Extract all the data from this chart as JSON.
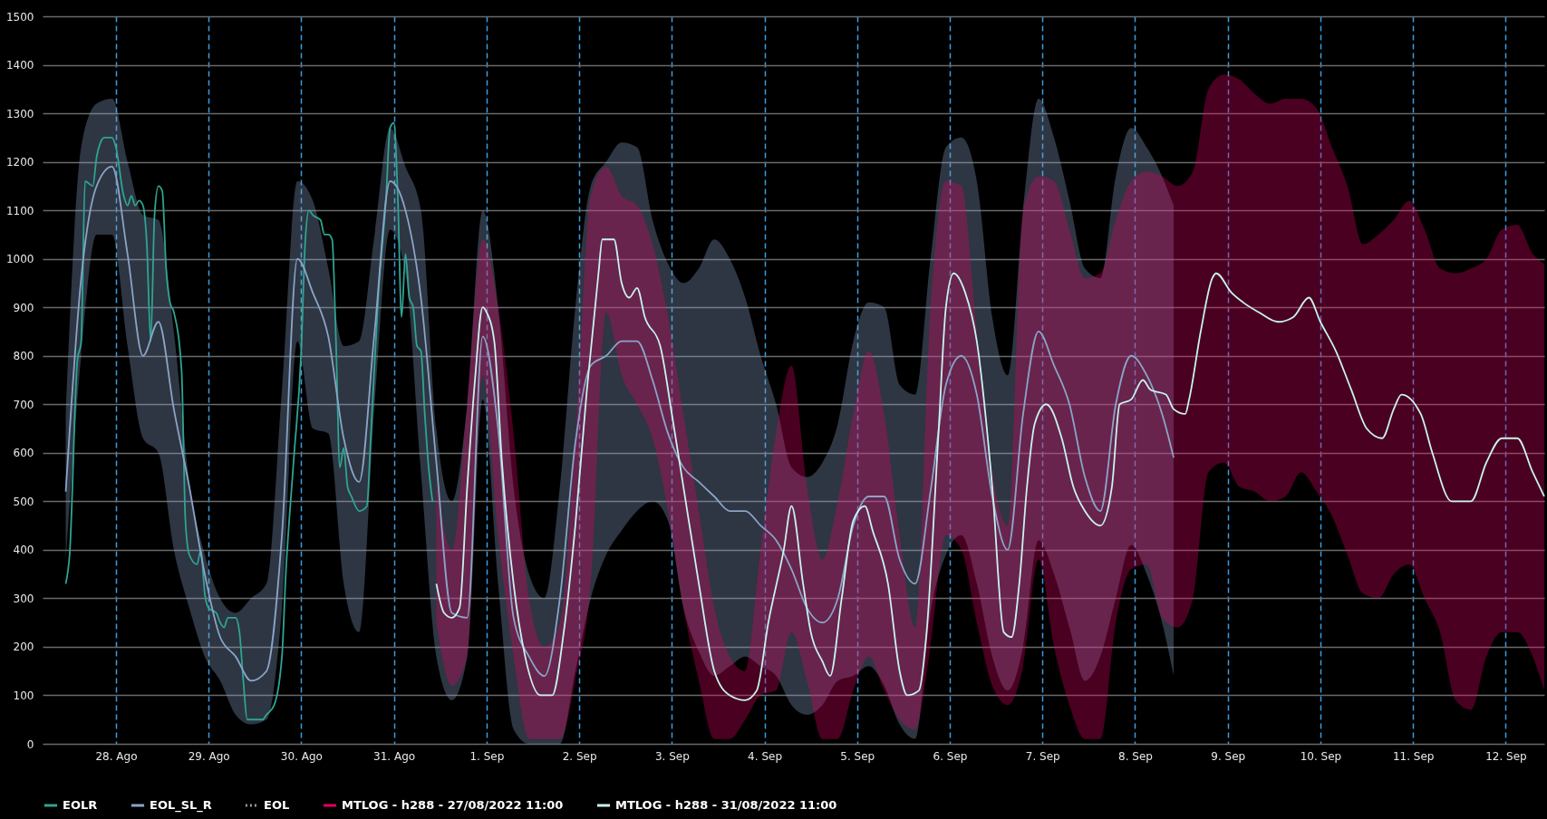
{
  "chart_data": {
    "type": "line",
    "legend": "bottom",
    "grid": true,
    "xlim": [
      "2022-08-27T05:00",
      "2022-09-12T10:00"
    ],
    "xticks": [
      {
        "value": "2022-08-28",
        "label": "28. Ago"
      },
      {
        "value": "2022-08-29",
        "label": "29. Ago"
      },
      {
        "value": "2022-08-30",
        "label": "30. Ago"
      },
      {
        "value": "2022-08-31",
        "label": "31. Ago"
      },
      {
        "value": "2022-09-01",
        "label": "1. Sep"
      },
      {
        "value": "2022-09-02",
        "label": "2. Sep"
      },
      {
        "value": "2022-09-03",
        "label": "3. Sep"
      },
      {
        "value": "2022-09-04",
        "label": "4. Sep"
      },
      {
        "value": "2022-09-05",
        "label": "5. Sep"
      },
      {
        "value": "2022-09-06",
        "label": "6. Sep"
      },
      {
        "value": "2022-09-07",
        "label": "7. Sep"
      },
      {
        "value": "2022-09-08",
        "label": "8. Sep"
      },
      {
        "value": "2022-09-09",
        "label": "9. Sep"
      },
      {
        "value": "2022-09-10",
        "label": "10. Sep"
      },
      {
        "value": "2022-09-11",
        "label": "11. Sep"
      },
      {
        "value": "2022-09-12",
        "label": "12. Sep"
      }
    ],
    "ylim": [
      0,
      1500
    ],
    "yticks": [
      0,
      100,
      200,
      300,
      400,
      500,
      600,
      700,
      800,
      900,
      1000,
      1100,
      1200,
      1300,
      1400,
      1500
    ],
    "series": [
      {
        "name": "EOLR",
        "color": "#2fa493",
        "x": [
          "2022-08-27T11:00",
          "2022-08-27T12:00",
          "2022-08-27T14:00",
          "2022-08-27T15:00",
          "2022-08-27T16:00",
          "2022-08-27T18:00",
          "2022-08-27T19:00",
          "2022-08-27T20:00",
          "2022-08-27T21:00",
          "2022-08-27T23:00",
          "2022-08-28T00:00",
          "2022-08-28T02:00",
          "2022-08-28T03:00",
          "2022-08-28T04:00",
          "2022-08-28T05:00",
          "2022-08-28T06:00",
          "2022-08-28T07:00",
          "2022-08-28T08:00",
          "2022-08-28T09:00",
          "2022-08-28T10:00",
          "2022-08-28T11:00",
          "2022-08-28T12:00",
          "2022-08-28T13:00",
          "2022-08-28T14:00",
          "2022-08-28T15:00",
          "2022-08-28T17:00",
          "2022-08-28T18:00",
          "2022-08-28T19:00",
          "2022-08-28T21:00",
          "2022-08-28T22:00",
          "2022-08-28T23:00",
          "2022-08-29T00:00",
          "2022-08-29T02:00",
          "2022-08-29T03:00",
          "2022-08-29T04:00",
          "2022-08-29T05:00",
          "2022-08-29T07:00",
          "2022-08-29T08:00",
          "2022-08-29T09:00",
          "2022-08-29T10:00",
          "2022-08-29T12:00",
          "2022-08-29T13:00",
          "2022-08-29T14:00",
          "2022-08-29T15:00",
          "2022-08-29T17:00",
          "2022-08-29T19:00",
          "2022-08-29T20:00",
          "2022-08-29T22:00",
          "2022-08-30T00:00",
          "2022-08-30T01:00",
          "2022-08-30T02:00",
          "2022-08-30T03:00",
          "2022-08-30T05:00",
          "2022-08-30T06:00",
          "2022-08-30T07:00",
          "2022-08-30T08:00",
          "2022-08-30T09:00",
          "2022-08-30T10:00",
          "2022-08-30T11:00",
          "2022-08-30T12:00",
          "2022-08-30T13:00",
          "2022-08-30T15:00",
          "2022-08-30T17:00",
          "2022-08-30T18:00",
          "2022-08-30T20:00",
          "2022-08-30T22:00",
          "2022-08-30T23:00",
          "2022-08-31T00:00",
          "2022-08-31T01:00",
          "2022-08-31T02:00",
          "2022-08-31T03:00",
          "2022-08-31T04:00",
          "2022-08-31T05:00",
          "2022-08-31T06:00",
          "2022-08-31T07:00",
          "2022-08-31T08:00",
          "2022-08-31T09:00",
          "2022-08-31T10:00"
        ],
        "values": [
          330,
          390,
          790,
          830,
          1160,
          1150,
          1210,
          1240,
          1250,
          1250,
          1230,
          1130,
          1110,
          1130,
          1110,
          1120,
          1110,
          1030,
          830,
          1090,
          1150,
          1140,
          980,
          910,
          890,
          770,
          460,
          390,
          370,
          400,
          310,
          280,
          270,
          250,
          240,
          260,
          260,
          230,
          130,
          50,
          50,
          50,
          50,
          60,
          80,
          180,
          350,
          580,
          810,
          1030,
          1100,
          1090,
          1080,
          1050,
          1050,
          1040,
          830,
          570,
          610,
          530,
          510,
          480,
          490,
          630,
          930,
          1130,
          1270,
          1280,
          1130,
          880,
          1010,
          920,
          900,
          820,
          810,
          680,
          570,
          500
        ]
      },
      {
        "name": "EOL_SL_R",
        "color": "#8aa4c8",
        "x": [
          "2022-08-27T11:00",
          "2022-08-27T15:00",
          "2022-08-27T19:00",
          "2022-08-27T23:00",
          "2022-08-28T03:00",
          "2022-08-28T07:00",
          "2022-08-28T11:00",
          "2022-08-28T15:00",
          "2022-08-28T19:00",
          "2022-08-28T23:00",
          "2022-08-29T03:00",
          "2022-08-29T07:00",
          "2022-08-29T11:00",
          "2022-08-29T15:00",
          "2022-08-29T19:00",
          "2022-08-29T23:00",
          "2022-08-30T03:00",
          "2022-08-30T07:00",
          "2022-08-30T11:00",
          "2022-08-30T15:00",
          "2022-08-30T19:00",
          "2022-08-30T23:00",
          "2022-08-31T03:00",
          "2022-08-31T07:00",
          "2022-08-31T11:00",
          "2022-08-31T15:00",
          "2022-08-31T19:00",
          "2022-08-31T23:00",
          "2022-09-01T03:00",
          "2022-09-01T07:00",
          "2022-09-01T11:00",
          "2022-09-01T15:00",
          "2022-09-01T19:00",
          "2022-09-01T23:00",
          "2022-09-02T03:00",
          "2022-09-02T07:00",
          "2022-09-02T11:00",
          "2022-09-02T15:00",
          "2022-09-02T19:00",
          "2022-09-02T23:00",
          "2022-09-03T03:00",
          "2022-09-03T07:00",
          "2022-09-03T11:00",
          "2022-09-03T15:00",
          "2022-09-03T19:00",
          "2022-09-03T23:00",
          "2022-09-04T03:00",
          "2022-09-04T07:00",
          "2022-09-04T11:00",
          "2022-09-04T15:00",
          "2022-09-04T19:00",
          "2022-09-04T23:00",
          "2022-09-05T03:00",
          "2022-09-05T07:00",
          "2022-09-05T11:00",
          "2022-09-05T15:00",
          "2022-09-05T19:00",
          "2022-09-05T23:00",
          "2022-09-06T03:00",
          "2022-09-06T07:00",
          "2022-09-06T11:00",
          "2022-09-06T15:00",
          "2022-09-06T19:00",
          "2022-09-06T23:00",
          "2022-09-07T03:00",
          "2022-09-07T07:00",
          "2022-09-07T11:00",
          "2022-09-07T15:00",
          "2022-09-07T19:00",
          "2022-09-07T23:00",
          "2022-09-08T03:00",
          "2022-09-08T07:00",
          "2022-09-08T10:00"
        ],
        "values": [
          520,
          960,
          1150,
          1190,
          1010,
          800,
          870,
          690,
          530,
          350,
          220,
          180,
          130,
          150,
          430,
          1000,
          930,
          840,
          630,
          540,
          850,
          1160,
          1100,
          920,
          580,
          270,
          260,
          840,
          650,
          260,
          180,
          140,
          300,
          620,
          780,
          800,
          830,
          830,
          750,
          640,
          570,
          540,
          510,
          480,
          480,
          450,
          420,
          360,
          280,
          250,
          300,
          450,
          510,
          510,
          380,
          330,
          520,
          740,
          800,
          720,
          510,
          400,
          680,
          850,
          780,
          700,
          550,
          480,
          700,
          800,
          760,
          680,
          590
        ],
        "lower": [
          380,
          800,
          1050,
          1050,
          820,
          630,
          600,
          400,
          280,
          180,
          130,
          60,
          40,
          50,
          280,
          830,
          650,
          640,
          330,
          230,
          700,
          1060,
          970,
          560,
          180,
          90,
          180,
          710,
          330,
          30,
          0,
          0,
          0,
          150,
          300,
          390,
          440,
          480,
          500,
          460,
          280,
          190,
          140,
          160,
          180,
          160,
          140,
          80,
          60,
          80,
          130,
          140,
          160,
          120,
          40,
          10,
          270,
          390,
          430,
          330,
          180,
          110,
          200,
          420,
          350,
          240,
          130,
          180,
          300,
          410,
          350,
          250,
          140
        ],
        "upper": [
          680,
          1230,
          1320,
          1330,
          1200,
          1090,
          1080,
          850,
          540,
          390,
          300,
          270,
          300,
          330,
          730,
          1160,
          1120,
          980,
          820,
          830,
          1050,
          1270,
          1190,
          1100,
          650,
          500,
          700,
          1100,
          900,
          530,
          350,
          300,
          530,
          900,
          1150,
          1200,
          1240,
          1230,
          1080,
          990,
          950,
          980,
          1040,
          1000,
          920,
          800,
          700,
          570,
          550,
          580,
          660,
          830,
          910,
          900,
          740,
          720,
          1000,
          1230,
          1250,
          1160,
          880,
          760,
          1100,
          1330,
          1250,
          1120,
          980,
          960,
          1170,
          1270,
          1230,
          1170,
          1110
        ]
      },
      {
        "name": "EOL",
        "color": "#9a9a9a",
        "line_style": "dotted"
      },
      {
        "name": "MTLOG - h288 - 27/08/2022 11:00",
        "color": "#e00061",
        "values": [
          null,
          null,
          null,
          null,
          null,
          null,
          null,
          null,
          null,
          null,
          null,
          null,
          null,
          null,
          null,
          null,
          null,
          null,
          null,
          null,
          null,
          null,
          null,
          null,
          null,
          null,
          null,
          null,
          null,
          null,
          null,
          null,
          null,
          null,
          null,
          null,
          null,
          null,
          null,
          null,
          null,
          null,
          null,
          null,
          null,
          null,
          null,
          null,
          null,
          null,
          null,
          null,
          null,
          null,
          null,
          null,
          null,
          null,
          null,
          null,
          null,
          null,
          null,
          null,
          null,
          null,
          null,
          null,
          null,
          null,
          null,
          null,
          null
        ],
        "x": [
          "2022-08-31T11:00",
          "2022-08-31T15:00",
          "2022-08-31T19:00",
          "2022-08-31T23:00",
          "2022-09-01T03:00",
          "2022-09-01T07:00",
          "2022-09-01T11:00",
          "2022-09-01T15:00",
          "2022-09-01T19:00",
          "2022-09-01T23:00",
          "2022-09-02T03:00",
          "2022-09-02T07:00",
          "2022-09-02T11:00",
          "2022-09-02T15:00",
          "2022-09-02T19:00",
          "2022-09-02T23:00",
          "2022-09-03T03:00",
          "2022-09-03T07:00",
          "2022-09-03T11:00",
          "2022-09-03T15:00",
          "2022-09-03T19:00",
          "2022-09-03T23:00",
          "2022-09-04T03:00",
          "2022-09-04T07:00",
          "2022-09-04T11:00",
          "2022-09-04T15:00",
          "2022-09-04T19:00",
          "2022-09-04T23:00",
          "2022-09-05T03:00",
          "2022-09-05T07:00",
          "2022-09-05T11:00",
          "2022-09-05T15:00",
          "2022-09-05T19:00",
          "2022-09-05T23:00",
          "2022-09-06T03:00",
          "2022-09-06T07:00",
          "2022-09-06T11:00",
          "2022-09-06T15:00",
          "2022-09-06T19:00",
          "2022-09-06T23:00",
          "2022-09-07T03:00",
          "2022-09-07T07:00",
          "2022-09-07T11:00",
          "2022-09-07T15:00",
          "2022-09-07T19:00",
          "2022-09-07T23:00",
          "2022-09-08T03:00",
          "2022-09-08T07:00",
          "2022-09-08T11:00",
          "2022-09-08T15:00",
          "2022-09-08T19:00",
          "2022-09-08T23:00",
          "2022-09-09T03:00",
          "2022-09-09T07:00",
          "2022-09-09T11:00",
          "2022-09-09T15:00",
          "2022-09-09T19:00",
          "2022-09-09T23:00",
          "2022-09-10T03:00",
          "2022-09-10T07:00",
          "2022-09-10T11:00",
          "2022-09-10T15:00",
          "2022-09-10T19:00",
          "2022-09-10T23:00",
          "2022-09-11T03:00",
          "2022-09-11T07:00",
          "2022-09-11T11:00",
          "2022-09-11T15:00",
          "2022-09-11T19:00",
          "2022-09-11T23:00",
          "2022-09-12T03:00",
          "2022-09-12T07:00",
          "2022-09-12T10:00"
        ],
        "lower": [
          250,
          120,
          180,
          760,
          430,
          180,
          10,
          10,
          10,
          130,
          330,
          890,
          760,
          700,
          630,
          480,
          280,
          130,
          10,
          10,
          50,
          100,
          110,
          230,
          130,
          10,
          10,
          110,
          180,
          110,
          50,
          30,
          200,
          430,
          400,
          250,
          120,
          80,
          160,
          380,
          200,
          80,
          10,
          10,
          250,
          360,
          370,
          260,
          240,
          300,
          560,
          580,
          530,
          520,
          500,
          510,
          560,
          520,
          470,
          390,
          310,
          300,
          350,
          370,
          300,
          230,
          90,
          70,
          180,
          230,
          230,
          180,
          110
        ],
        "upper": [
          540,
          400,
          700,
          1040,
          900,
          640,
          300,
          200,
          250,
          630,
          1130,
          1190,
          1130,
          1110,
          1030,
          880,
          680,
          480,
          280,
          180,
          150,
          400,
          640,
          780,
          530,
          380,
          500,
          680,
          810,
          680,
          430,
          240,
          900,
          1160,
          1150,
          850,
          560,
          450,
          1100,
          1170,
          1160,
          1060,
          960,
          970,
          1080,
          1160,
          1180,
          1170,
          1150,
          1180,
          1350,
          1380,
          1370,
          1340,
          1320,
          1330,
          1330,
          1310,
          1230,
          1150,
          1030,
          1050,
          1080,
          1120,
          1060,
          980,
          970,
          980,
          1000,
          1060,
          1070,
          1010,
          990
        ]
      },
      {
        "name": "MTLOG - h288 - 31/08/2022 11:00",
        "color": "#c8f4f0",
        "x": [
          "2022-08-31T11:00",
          "2022-08-31T13:00",
          "2022-08-31T15:00",
          "2022-08-31T17:00",
          "2022-08-31T19:00",
          "2022-08-31T21:00",
          "2022-08-31T23:00",
          "2022-09-01T00:00",
          "2022-09-01T02:00",
          "2022-09-01T04:00",
          "2022-09-01T07:00",
          "2022-09-01T10:00",
          "2022-09-01T14:00",
          "2022-09-01T17:00",
          "2022-09-01T20:00",
          "2022-09-01T23:00",
          "2022-09-02T02:00",
          "2022-09-02T05:00",
          "2022-09-02T06:00",
          "2022-09-02T09:00",
          "2022-09-02T11:00",
          "2022-09-02T13:00",
          "2022-09-02T15:00",
          "2022-09-02T17:00",
          "2022-09-02T21:00",
          "2022-09-03T00:00",
          "2022-09-03T03:00",
          "2022-09-03T07:00",
          "2022-09-03T11:00",
          "2022-09-03T15:00",
          "2022-09-03T19:00",
          "2022-09-03T22:00",
          "2022-09-04T01:00",
          "2022-09-04T05:00",
          "2022-09-04T07:00",
          "2022-09-04T10:00",
          "2022-09-04T12:00",
          "2022-09-04T15:00",
          "2022-09-04T17:00",
          "2022-09-04T20:00",
          "2022-09-04T23:00",
          "2022-09-05T02:00",
          "2022-09-05T04:00",
          "2022-09-05T08:00",
          "2022-09-05T11:00",
          "2022-09-05T13:00",
          "2022-09-05T16:00",
          "2022-09-05T18:00",
          "2022-09-05T21:00",
          "2022-09-05T23:00",
          "2022-09-06T01:00",
          "2022-09-06T04:00",
          "2022-09-06T07:00",
          "2022-09-06T11:00",
          "2022-09-06T14:00",
          "2022-09-06T16:00",
          "2022-09-06T18:00",
          "2022-09-06T20:00",
          "2022-09-06T22:00",
          "2022-09-07T01:00",
          "2022-09-07T05:00",
          "2022-09-07T08:00",
          "2022-09-07T11:00",
          "2022-09-07T15:00",
          "2022-09-07T18:00",
          "2022-09-07T20:00",
          "2022-09-07T23:00",
          "2022-09-08T02:00",
          "2022-09-08T04:00",
          "2022-09-08T08:00",
          "2022-09-08T10:00",
          "2022-09-08T13:00",
          "2022-09-08T14:00",
          "2022-09-08T17:00",
          "2022-09-08T20:00",
          "2022-09-08T21:00",
          "2022-09-09T01:00",
          "2022-09-09T04:00",
          "2022-09-09T08:00",
          "2022-09-09T13:00",
          "2022-09-09T17:00",
          "2022-09-09T21:00",
          "2022-09-10T00:00",
          "2022-09-10T04:00",
          "2022-09-10T08:00",
          "2022-09-10T12:00",
          "2022-09-10T16:00",
          "2022-09-10T19:00",
          "2022-09-10T21:00",
          "2022-09-11T02:00",
          "2022-09-11T05:00",
          "2022-09-11T10:00",
          "2022-09-11T15:00",
          "2022-09-11T19:00",
          "2022-09-11T23:00",
          "2022-09-12T03:00",
          "2022-09-12T07:00",
          "2022-09-12T10:00"
        ],
        "values": [
          330,
          270,
          260,
          280,
          530,
          750,
          900,
          890,
          830,
          580,
          330,
          180,
          100,
          100,
          230,
          450,
          730,
          970,
          1040,
          1040,
          950,
          920,
          940,
          880,
          820,
          680,
          530,
          330,
          150,
          100,
          90,
          110,
          250,
          400,
          490,
          330,
          230,
          170,
          140,
          300,
          460,
          490,
          440,
          330,
          150,
          100,
          110,
          230,
          630,
          900,
          970,
          930,
          830,
          530,
          230,
          220,
          330,
          530,
          660,
          700,
          630,
          530,
          480,
          450,
          530,
          700,
          710,
          750,
          730,
          720,
          690,
          680,
          710,
          850,
          960,
          970,
          930,
          910,
          890,
          870,
          880,
          920,
          870,
          810,
          730,
          650,
          630,
          690,
          720,
          680,
          600,
          500,
          500,
          580,
          630,
          630,
          560,
          510
        ]
      }
    ]
  }
}
